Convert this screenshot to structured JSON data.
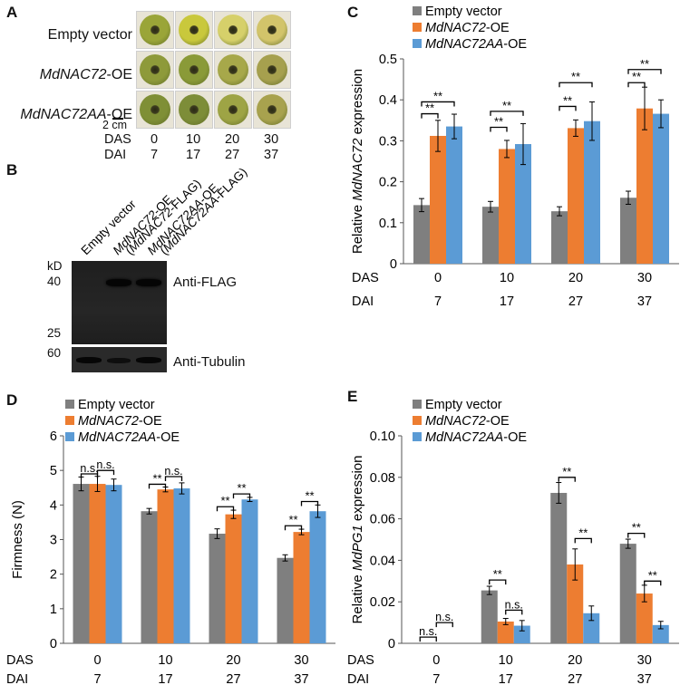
{
  "panelA": {
    "letter": "A",
    "rows": [
      {
        "parts": [
          "Empty vector"
        ],
        "italic": [
          false
        ]
      },
      {
        "parts": [
          "MdNAC72",
          "-OE"
        ],
        "italic": [
          true,
          false
        ]
      },
      {
        "parts": [
          "MdNAC72AA",
          "-OE"
        ],
        "italic": [
          true,
          false
        ]
      }
    ],
    "scalebar": "2 cm",
    "das_label": "DAS",
    "dai_label": "DAI",
    "das": [
      "0",
      "10",
      "20",
      "30"
    ],
    "dai": [
      "7",
      "17",
      "27",
      "37"
    ],
    "fruit_colors": [
      [
        "#9aa538",
        "#c9c83c",
        "#d6d06a",
        "#d2c46a"
      ],
      [
        "#8e9a3a",
        "#8a9a38",
        "#a7a84a",
        "#a6a04e"
      ],
      [
        "#7f8f36",
        "#7d8d38",
        "#9ea445",
        "#a8a24e"
      ]
    ]
  },
  "panelB": {
    "letter": "B",
    "lane_labels": [
      "Empty vector",
      "MdNAC72-OE (MdNAC72-FLAG)",
      "MdNAC72AA-OE (MdNAC72AA-FLAG)"
    ],
    "lane_lines": [
      [
        "Empty vector"
      ],
      [
        "MdNAC72-OE",
        "(MdNAC72-FLAG)"
      ],
      [
        "MdNAC72AA-OE",
        "(MdNAC72AA-FLAG)"
      ]
    ],
    "kd_label": "kD",
    "markers": [
      "40",
      "25",
      "60"
    ],
    "blot1_label": "Anti-FLAG",
    "blot2_label": "Anti-Tubulin"
  },
  "colors": {
    "empty": "#7f7f7f",
    "nac72": "#ed7d31",
    "nac72aa": "#5b9bd5"
  },
  "chart_data": [
    {
      "id": "C",
      "type": "bar",
      "ylabel_parts": [
        "Relative ",
        "MdNAC72",
        " expression"
      ],
      "ylim": [
        0,
        0.5
      ],
      "yticks": [
        "0",
        "0.1",
        "0.2",
        "0.3",
        "0.4",
        "0.5"
      ],
      "legend": [
        {
          "parts": [
            "Empty vector"
          ],
          "italic": [
            false
          ]
        },
        {
          "parts": [
            "MdNAC72",
            "-OE"
          ],
          "italic": [
            true,
            false
          ]
        },
        {
          "parts": [
            "MdNAC72AA",
            "-OE"
          ],
          "italic": [
            true,
            false
          ]
        }
      ],
      "das_label": "DAS",
      "dai_label": "DAI",
      "das": [
        "0",
        "10",
        "20",
        "30"
      ],
      "dai": [
        "7",
        "17",
        "27",
        "37"
      ],
      "series": [
        {
          "name": "Empty vector",
          "values": [
            0.143,
            0.139,
            0.128,
            0.161
          ],
          "errors": [
            0.016,
            0.013,
            0.011,
            0.016
          ]
        },
        {
          "name": "MdNAC72-OE",
          "values": [
            0.312,
            0.28,
            0.331,
            0.379
          ],
          "errors": [
            0.038,
            0.021,
            0.02,
            0.052
          ]
        },
        {
          "name": "MdNAC72AA-OE",
          "values": [
            0.335,
            0.292,
            0.348,
            0.366
          ],
          "errors": [
            0.03,
            0.05,
            0.047,
            0.034
          ]
        }
      ],
      "brackets": [
        {
          "g": 0,
          "a": 0,
          "b": 1,
          "text": "**",
          "y": 0.366
        },
        {
          "g": 0,
          "a": 0,
          "b": 2,
          "text": "**",
          "y": 0.395
        },
        {
          "g": 1,
          "a": 0,
          "b": 1,
          "text": "**",
          "y": 0.333
        },
        {
          "g": 1,
          "a": 0,
          "b": 2,
          "text": "**",
          "y": 0.372
        },
        {
          "g": 2,
          "a": 0,
          "b": 1,
          "text": "**",
          "y": 0.384
        },
        {
          "g": 2,
          "a": 0,
          "b": 2,
          "text": "**",
          "y": 0.442
        },
        {
          "g": 3,
          "a": 0,
          "b": 1,
          "text": "**",
          "y": 0.442
        },
        {
          "g": 3,
          "a": 0,
          "b": 2,
          "text": "**",
          "y": 0.474
        }
      ]
    },
    {
      "id": "D",
      "type": "bar",
      "ylabel_parts": [
        "Firmness (N)"
      ],
      "ylim": [
        0,
        6
      ],
      "yticks": [
        "0",
        "1",
        "2",
        "3",
        "4",
        "5",
        "6"
      ],
      "legend": [
        {
          "parts": [
            "Empty vector"
          ],
          "italic": [
            false
          ]
        },
        {
          "parts": [
            "MdNAC72",
            "-OE"
          ],
          "italic": [
            true,
            false
          ]
        },
        {
          "parts": [
            "MdNAC72AA",
            "-OE"
          ],
          "italic": [
            true,
            false
          ]
        }
      ],
      "das_label": "DAS",
      "dai_label": "DAI",
      "das": [
        "0",
        "10",
        "20",
        "30"
      ],
      "dai": [
        "7",
        "17",
        "27",
        "37"
      ],
      "series": [
        {
          "name": "Empty vector",
          "values": [
            4.61,
            3.82,
            3.17,
            2.47
          ],
          "errors": [
            0.2,
            0.08,
            0.14,
            0.09
          ]
        },
        {
          "name": "MdNAC72-OE",
          "values": [
            4.61,
            4.45,
            3.73,
            3.22
          ],
          "errors": [
            0.22,
            0.07,
            0.12,
            0.08
          ]
        },
        {
          "name": "MdNAC72AA-OE",
          "values": [
            4.58,
            4.48,
            4.16,
            3.82
          ],
          "errors": [
            0.17,
            0.16,
            0.06,
            0.18
          ]
        }
      ],
      "brackets": [
        {
          "g": 0,
          "a": 0,
          "b": 1,
          "text": "n.s.",
          "y": 4.9
        },
        {
          "g": 0,
          "a": 1,
          "b": 2,
          "text": "n.s.",
          "y": 5.0
        },
        {
          "g": 1,
          "a": 0,
          "b": 1,
          "text": "**",
          "y": 4.6
        },
        {
          "g": 1,
          "a": 1,
          "b": 2,
          "text": "n.s.",
          "y": 4.82
        },
        {
          "g": 2,
          "a": 0,
          "b": 1,
          "text": "**",
          "y": 3.95
        },
        {
          "g": 2,
          "a": 1,
          "b": 2,
          "text": "**",
          "y": 4.32
        },
        {
          "g": 3,
          "a": 0,
          "b": 1,
          "text": "**",
          "y": 3.4
        },
        {
          "g": 3,
          "a": 1,
          "b": 2,
          "text": "**",
          "y": 4.1
        }
      ]
    },
    {
      "id": "E",
      "type": "bar",
      "ylabel_parts": [
        "Relative ",
        "MdPG1",
        " expression"
      ],
      "ylim": [
        0,
        0.1
      ],
      "yticks": [
        "0",
        "0.02",
        "0.04",
        "0.06",
        "0.08",
        "0.10"
      ],
      "legend": [
        {
          "parts": [
            "Empty vector"
          ],
          "italic": [
            false
          ]
        },
        {
          "parts": [
            "MdNAC72",
            "-OE"
          ],
          "italic": [
            true,
            false
          ]
        },
        {
          "parts": [
            "MdNAC72AA",
            "-OE"
          ],
          "italic": [
            true,
            false
          ]
        }
      ],
      "das_label": "DAS",
      "dai_label": "DAI",
      "das": [
        "0",
        "10",
        "20",
        "30"
      ],
      "dai": [
        "7",
        "17",
        "27",
        "37"
      ],
      "series": [
        {
          "name": "Empty vector",
          "values": [
            0,
            0.0255,
            0.0725,
            0.048
          ],
          "errors": [
            0,
            0.002,
            0.005,
            0.0022
          ]
        },
        {
          "name": "MdNAC72-OE",
          "values": [
            0,
            0.0105,
            0.038,
            0.024
          ],
          "errors": [
            0,
            0.0015,
            0.0075,
            0.004
          ]
        },
        {
          "name": "MdNAC72AA-OE",
          "values": [
            0,
            0.0085,
            0.0145,
            0.0088
          ],
          "errors": [
            0,
            0.0025,
            0.0035,
            0.0018
          ]
        }
      ],
      "brackets": [
        {
          "g": 0,
          "a": 0,
          "b": 1,
          "text": "n.s.",
          "y": 0.003
        },
        {
          "g": 0,
          "a": 1,
          "b": 2,
          "text": "n.s.",
          "y": 0.01
        },
        {
          "g": 1,
          "a": 0,
          "b": 1,
          "text": "**",
          "y": 0.0305
        },
        {
          "g": 1,
          "a": 1,
          "b": 2,
          "text": "n.s.",
          "y": 0.016
        },
        {
          "g": 2,
          "a": 0,
          "b": 1,
          "text": "**",
          "y": 0.08
        },
        {
          "g": 2,
          "a": 1,
          "b": 2,
          "text": "**",
          "y": 0.0505
        },
        {
          "g": 3,
          "a": 0,
          "b": 1,
          "text": "**",
          "y": 0.053
        },
        {
          "g": 3,
          "a": 1,
          "b": 2,
          "text": "**",
          "y": 0.03
        }
      ]
    }
  ]
}
